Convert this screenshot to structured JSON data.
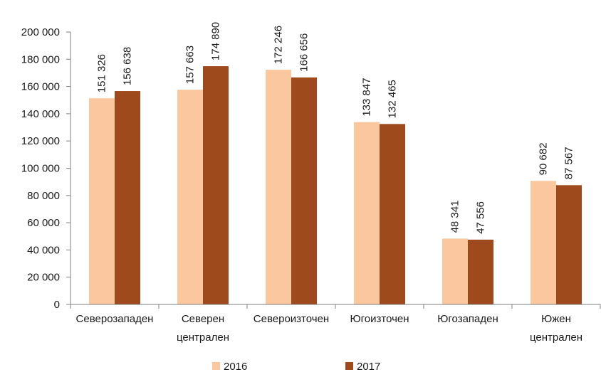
{
  "colors": {
    "s2016": "#FBC79E",
    "s2017": "#9E4A1C",
    "axis": "#7f7f7f"
  },
  "chart_data": {
    "type": "bar",
    "categories": [
      [
        "Северозападен"
      ],
      [
        "Северен",
        "централен"
      ],
      [
        "Североизточен"
      ],
      [
        "Югоизточен"
      ],
      [
        "Югозападен"
      ],
      [
        "Южен",
        "централен"
      ]
    ],
    "series": [
      {
        "name": "2016",
        "values": [
          151326,
          157663,
          172246,
          133847,
          48341,
          90682
        ],
        "labels": [
          "151 326",
          "157 663",
          "172 246",
          "133 847",
          "48 341",
          "90 682"
        ]
      },
      {
        "name": "2017",
        "values": [
          156638,
          174890,
          166656,
          132465,
          47556,
          87567
        ],
        "labels": [
          "156 638",
          "174 890",
          "166 656",
          "132 465",
          "47 556",
          "87 567"
        ]
      }
    ],
    "ylim": [
      0,
      200000
    ],
    "yticks": [
      0,
      20000,
      40000,
      60000,
      80000,
      100000,
      120000,
      140000,
      160000,
      180000,
      200000
    ],
    "ytick_labels": [
      "0",
      "20 000",
      "40 000",
      "60 000",
      "80 000",
      "100 000",
      "120 000",
      "140 000",
      "160 000",
      "180 000",
      "200 000"
    ],
    "legend": "bottom",
    "grid": false
  }
}
